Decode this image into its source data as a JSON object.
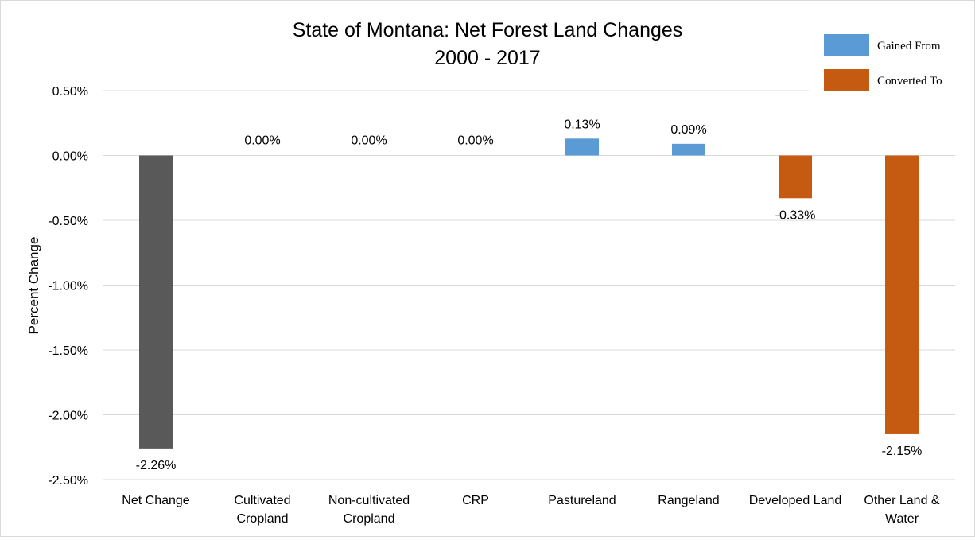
{
  "chart_data": {
    "type": "bar",
    "title": "State of Montana: Net Forest Land Changes",
    "subtitle": "2000 - 2017",
    "ylabel": "Percent Change",
    "xlabel": "",
    "ylim": [
      -2.5,
      0.5
    ],
    "yticks": [
      0.5,
      0.0,
      -0.5,
      -1.0,
      -1.5,
      -2.0,
      -2.5
    ],
    "ytick_labels": [
      "0.50%",
      "0.00%",
      "-0.50%",
      "-1.00%",
      "-1.50%",
      "-2.00%",
      "-2.50%"
    ],
    "grid": true,
    "legend_position": "top-right",
    "categories": [
      [
        "Net Change"
      ],
      [
        "Cultivated",
        "Cropland"
      ],
      [
        "Non-cultivated",
        "Cropland"
      ],
      [
        "CRP"
      ],
      [
        "Pastureland"
      ],
      [
        "Rangeland"
      ],
      [
        "Developed Land"
      ],
      [
        "Other Land &",
        "Water"
      ]
    ],
    "values": [
      -2.26,
      0.0,
      0.0,
      0.0,
      0.13,
      0.09,
      -0.33,
      -2.15
    ],
    "data_labels": [
      "-2.26%",
      "0.00%",
      "0.00%",
      "0.00%",
      "0.13%",
      "0.09%",
      "-0.33%",
      "-2.15%"
    ],
    "bar_groups": [
      "net",
      "gained",
      "gained",
      "gained",
      "gained",
      "gained",
      "converted",
      "converted"
    ],
    "legend": [
      {
        "name": "Gained From",
        "color": "#5b9bd5"
      },
      {
        "name": "Converted To",
        "color": "#c55a11"
      }
    ],
    "colors": {
      "net": "#595959",
      "gained": "#5b9bd5",
      "converted": "#c55a11",
      "grid": "#d9d9d9",
      "text": "#000000"
    }
  }
}
